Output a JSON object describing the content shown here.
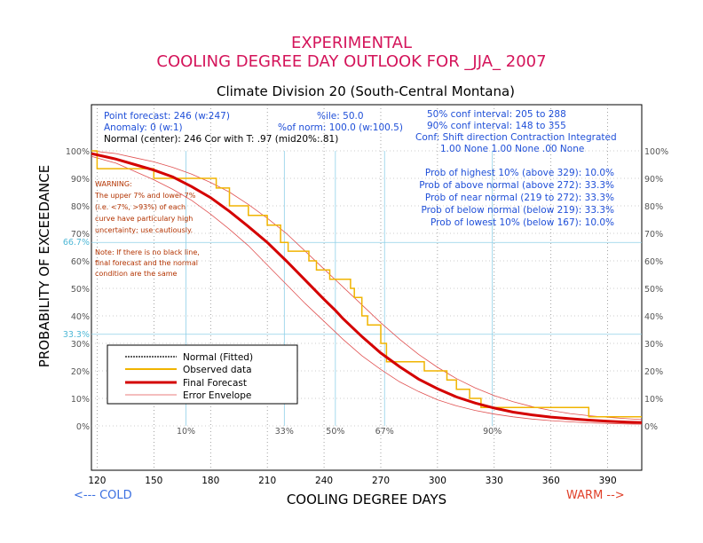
{
  "header": {
    "line1": "EXPERIMENTAL",
    "line2": "COOLING DEGREE DAY OUTLOOK FOR _JJA_ 2007",
    "subtitle": "Climate Division 20 (South-Central Montana)"
  },
  "info_left": {
    "point_forecast": "Point forecast: 246 (w:247)",
    "anomaly": "Anomaly: 0 (w:1)",
    "normal": "Normal (center): 246  Cor with T: .97 (mid20%:.81)",
    "percentile": "%ile: 50.0",
    "pct_norm": "%of norm: 100.0 (w:100.5)"
  },
  "info_right": {
    "ci50": "50% conf interval: 205 to 288",
    "ci90": "90% conf interval: 148 to 355",
    "conf_header": "Conf: Shift direction   Contraction   Integrated",
    "conf_values": "1.00 None        1.00 None    .00 None",
    "prob_highest": "Prob of highest 10% (above 329): 10.0%",
    "prob_above": "Prob of above normal (above 272): 33.3%",
    "prob_near": "Prob of near normal (219 to 272): 33.3%",
    "prob_below": "Prob of below normal (below 219): 33.3%",
    "prob_lowest": "Prob of lowest 10% (below 167): 10.0%"
  },
  "warning": {
    "lines": [
      "WARNING:",
      "The upper 7% and lower 7%",
      "(i.e. <7%, >93%) of each",
      "curve have particulary high",
      "uncertainty; use cautiously."
    ],
    "note": [
      "Note: If there is no black line,",
      "final forecast and  the normal",
      "condition are the same"
    ]
  },
  "axes": {
    "ylabel": "PROBABILITY OF EXCEEDANCE",
    "xlabel": "COOLING DEGREE DAYS",
    "cold": "<--- COLD",
    "warm": "WARM -->",
    "y_left_ticks": [
      "100%",
      "90%",
      "80%",
      "70%",
      "60%",
      "50%",
      "40%",
      "30%",
      "20%",
      "10%",
      "0%"
    ],
    "y_right_ticks": [
      "100%",
      "90%",
      "80%",
      "70%",
      "60%",
      "50%",
      "40%",
      "30%",
      "20%",
      "10%",
      "0%"
    ],
    "x_ticks": [
      "120",
      "150",
      "180",
      "210",
      "240",
      "270",
      "300",
      "330",
      "360",
      "390"
    ],
    "x_pct_labels": [
      "10%",
      "33%",
      "50%",
      "67%",
      "90%"
    ],
    "cyan_labels": [
      "66.7%",
      "33.3%"
    ]
  },
  "legend": {
    "normal": "Normal (Fitted)",
    "observed": "Observed data",
    "final": "Final Forecast",
    "envelope": "Error Envelope"
  },
  "colors": {
    "title": "#d4145a",
    "final": "#d40000",
    "observed": "#f0b400",
    "envelope": "#e05050",
    "cyan": "#8fd0e8"
  },
  "chart_data": {
    "type": "line",
    "xlim": [
      117,
      408
    ],
    "ylim": [
      0,
      100
    ],
    "x_pct_positions": [
      167,
      219,
      246,
      272,
      329
    ],
    "cyan_levels": [
      66.7,
      33.3
    ],
    "final_forecast": {
      "x": [
        117,
        130,
        140,
        150,
        160,
        170,
        180,
        190,
        200,
        210,
        220,
        230,
        240,
        246,
        250,
        260,
        270,
        280,
        290,
        300,
        310,
        320,
        330,
        340,
        350,
        360,
        370,
        380,
        390,
        400,
        408
      ],
      "y": [
        99,
        97,
        95,
        93,
        90.5,
        87,
        83,
        78,
        72.5,
        66.7,
        60,
        53,
        46,
        42,
        39,
        32.5,
        26.5,
        21.5,
        17,
        13.5,
        10.5,
        8.3,
        6.5,
        5,
        4,
        3.2,
        2.6,
        2.1,
        1.7,
        1.4,
        1.2
      ]
    },
    "error_upper": {
      "x": [
        117,
        130,
        140,
        150,
        160,
        170,
        180,
        190,
        200,
        210,
        220,
        230,
        240,
        250,
        260,
        270,
        280,
        290,
        300,
        310,
        320,
        330,
        340,
        350,
        360,
        370,
        380,
        390,
        400,
        408
      ],
      "y": [
        100,
        99,
        97.5,
        96,
        94,
        91.5,
        88.5,
        85,
        80.5,
        75.5,
        70,
        63.5,
        57,
        50.5,
        44,
        37.5,
        31.5,
        26,
        21.3,
        17.2,
        13.8,
        11,
        8.8,
        7,
        5.6,
        4.5,
        3.7,
        3.1,
        2.6,
        2.3
      ]
    },
    "error_lower": {
      "x": [
        117,
        130,
        140,
        150,
        160,
        170,
        180,
        190,
        200,
        210,
        220,
        230,
        240,
        250,
        260,
        270,
        280,
        290,
        300,
        310,
        320,
        330,
        340,
        350,
        360,
        370,
        380,
        390,
        400,
        408
      ],
      "y": [
        98,
        95.5,
        92.5,
        89.5,
        86,
        82,
        77,
        71.5,
        65.5,
        58.5,
        51.5,
        44.5,
        38,
        31.5,
        25.5,
        20.5,
        16,
        12.5,
        9.5,
        7.3,
        5.6,
        4.3,
        3.3,
        2.5,
        1.9,
        1.5,
        1.1,
        0.9,
        0.7,
        0.6
      ]
    },
    "observed": {
      "x": [
        117,
        120,
        120,
        150,
        150,
        183,
        183,
        190,
        190,
        200,
        200,
        210,
        210,
        217,
        217,
        221,
        221,
        232,
        232,
        236,
        236,
        243,
        243,
        254,
        254,
        256,
        256,
        260,
        260,
        263,
        263,
        270,
        270,
        273,
        273,
        293,
        293,
        305,
        305,
        310,
        310,
        317,
        317,
        323,
        323,
        330,
        330,
        380,
        380,
        408
      ],
      "y": [
        100,
        100,
        93.5,
        93.5,
        90,
        90,
        86.5,
        86.5,
        80,
        80,
        76.5,
        76.5,
        73,
        73,
        66.7,
        66.7,
        63.5,
        63.5,
        60,
        60,
        56.7,
        56.7,
        53.3,
        53.3,
        50,
        50,
        46.7,
        46.7,
        40,
        40,
        36.7,
        36.7,
        30,
        30,
        23.3,
        23.3,
        20,
        20,
        16.7,
        16.7,
        13.3,
        13.3,
        10,
        10,
        6.7,
        6.7,
        6.7,
        6.7,
        3.3,
        3.3
      ]
    }
  }
}
